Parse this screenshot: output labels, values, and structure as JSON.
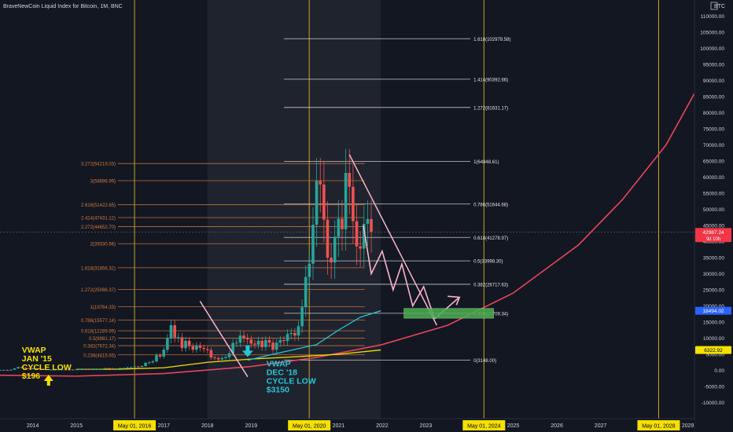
{
  "header": {
    "title": "BraveNewCoin Liquid Index for Bitcoin, 1M, BNC"
  },
  "chart_data": {
    "type": "candlestick",
    "title": "BraveNewCoin Liquid Index for Bitcoin, 1M, BNC",
    "x_axis": {
      "labels": [
        "2014",
        "2015",
        "2016",
        "2017",
        "2018",
        "2019",
        "2020",
        "2021",
        "2022",
        "2023",
        "2024",
        "2025",
        "2026",
        "2027",
        "2028",
        "2029"
      ],
      "range": [
        2013.25,
        2029.15
      ]
    },
    "y_axis": {
      "unit": "BTC",
      "range": [
        -15000,
        115000
      ],
      "ticks": [
        110000,
        105000,
        100000,
        95000,
        90000,
        85000,
        80000,
        75000,
        70000,
        65000,
        60000,
        55000,
        50000,
        45000,
        40000,
        35000,
        30000,
        25000,
        20000,
        15000,
        10000,
        5000,
        0,
        -5000,
        -10000
      ],
      "tick_labels": [
        "110000.00",
        "105000.00",
        "100000.00",
        "95000.00",
        "90000.00",
        "85000.00",
        "80000.00",
        "75000.00",
        "70000.00",
        "65000.00",
        "60000.00",
        "55000.00",
        "50000.00",
        "45000.00",
        "40000.00",
        "35000.00",
        "30000.00",
        "25000.00",
        "20000.00",
        "15000.00",
        "10000.00",
        "5000.00",
        "0.00",
        "-5000.00",
        "-10000.00"
      ]
    },
    "price_badges": [
      {
        "value": 42987.24,
        "label": "42987.24",
        "sublabel": "9d 10h",
        "color": "#f23645"
      },
      {
        "value": 18494.02,
        "label": "18494.02",
        "color": "#2962ff"
      },
      {
        "value": 6322.92,
        "label": "6322.92",
        "color": "#f5e000",
        "text_color": "#000000"
      }
    ],
    "vertical_markers": [
      {
        "x": 2016.33,
        "label": "May 01, 2016"
      },
      {
        "x": 2020.33,
        "label": "May 01, 2020"
      },
      {
        "x": 2024.33,
        "label": "May 01, 2024"
      },
      {
        "x": 2028.33,
        "label": "May 01, 2028"
      }
    ],
    "shaded_range": {
      "x": [
        2018.0,
        2021.97
      ],
      "color": "#2a2e39"
    },
    "fib_left": {
      "color": "#d37a3a",
      "x_range": [
        2013.25,
        2021.6
      ],
      "levels": [
        {
          "label": "3.272(64219.03)",
          "value": 64219.03
        },
        {
          "label": "3(58896.99)",
          "value": 58896.99
        },
        {
          "label": "2.618(51422.65)",
          "value": 51422.65
        },
        {
          "label": "2.414(47431.12)",
          "value": 47431.12
        },
        {
          "label": "2.272(44652.70)",
          "value": 44652.7
        },
        {
          "label": "2(39330.66)",
          "value": 39330.66
        },
        {
          "label": "1.618(31856.32)",
          "value": 31856.32
        },
        {
          "label": "1.272(25086.37)",
          "value": 25086.37
        },
        {
          "label": "1(19764.33)",
          "value": 19764.33
        },
        {
          "label": "0.786(15577.14)",
          "value": 15577.14
        },
        {
          "label": "0.618(12289.99)",
          "value": 12289.99
        },
        {
          "label": "0.5(9981.17)",
          "value": 9981.17
        },
        {
          "label": "0.382(7672.34)",
          "value": 7672.34
        },
        {
          "label": "0.236(4815.65)",
          "value": 4815.65
        }
      ]
    },
    "fib_right": {
      "color": "#e8e8e8",
      "x_range": [
        2019.75,
        2025.1
      ],
      "levels": [
        {
          "label": "1.618(102979.58)",
          "value": 102979.58
        },
        {
          "label": "1.414(90392.66)",
          "value": 90392.66
        },
        {
          "label": "1.272(81631.17)",
          "value": 81631.17
        },
        {
          "label": "1(64848.61)",
          "value": 64848.61
        },
        {
          "label": "0.786(51644.68)",
          "value": 51644.68
        },
        {
          "label": "0.618(41278.97)",
          "value": 41278.97
        },
        {
          "label": "0.5(33998.30)",
          "value": 33998.3
        },
        {
          "label": "0.382(26717.63)",
          "value": 26717.63
        },
        {
          "label": "0.236(17709.34)",
          "value": 17709.34
        },
        {
          "label": "0(3148.00)",
          "value": 3148.0
        }
      ]
    },
    "candles_monthly_close": {
      "start": 2013.25,
      "step": 0.08333,
      "closes": [
        110,
        130,
        100,
        200,
        600,
        1000,
        800,
        600,
        450,
        600,
        580,
        400,
        330,
        230,
        240,
        250,
        260,
        280,
        230,
        240,
        230,
        320,
        360,
        430,
        370,
        400,
        420,
        450,
        530,
        670,
        620,
        580,
        610,
        700,
        740,
        960,
        970,
        1190,
        1080,
        1350,
        2300,
        2500,
        2800,
        4700,
        4300,
        6400,
        9900,
        14000,
        10200,
        10300,
        6900,
        9200,
        7500,
        6400,
        7700,
        7000,
        6600,
        6300,
        4000,
        3800,
        3400,
        3800,
        4100,
        5300,
        8500,
        8600,
        10800,
        10100,
        9600,
        8300,
        8000,
        9200,
        7200,
        9400,
        8600,
        6400,
        8600,
        9400,
        9100,
        11300,
        11600,
        10800,
        13700,
        19600,
        29000,
        33100,
        45200,
        58800,
        57700,
        46800,
        35000,
        33500,
        41500,
        47100,
        43800,
        61300,
        57000,
        46300,
        38500,
        37800,
        45500,
        47000,
        42987
      ]
    },
    "vwap_series": [
      {
        "name": "VWAP JAN '15",
        "color": "#f5e000",
        "x": [
          2015.0,
          2016.0,
          2017.0,
          2018.0,
          2019.0,
          2020.0,
          2021.0,
          2021.97
        ],
        "y": [
          300,
          380,
          800,
          2500,
          3500,
          4200,
          5000,
          6322
        ]
      },
      {
        "name": "VWAP DEC '18",
        "color": "#26c6da",
        "x": [
          2018.92,
          2019.5,
          2020.0,
          2020.5,
          2021.0,
          2021.5,
          2021.97
        ],
        "y": [
          3150,
          5000,
          6500,
          8000,
          12500,
          16500,
          18494
        ]
      }
    ],
    "growth_curve": {
      "color": "#e8455a",
      "x": [
        2013.25,
        2015,
        2017,
        2019,
        2020.5,
        2022,
        2023.5,
        2025,
        2026.5,
        2027.5,
        2028.5,
        2029.15
      ],
      "y": [
        -1500,
        -1800,
        -1000,
        1200,
        4000,
        8000,
        14000,
        24000,
        39000,
        53000,
        70000,
        86000
      ]
    },
    "annotations": [
      {
        "lines": [
          "VWAP",
          "JAN '15",
          "CYCLE LOW",
          "$196"
        ],
        "color": "#f5e000",
        "x": 2013.75,
        "y": 5500
      },
      {
        "lines": [
          "VWAP",
          "DEC '18",
          "CYCLE LOW",
          "$3150"
        ],
        "color": "#26c6da",
        "x": 2019.35,
        "y": 1200
      }
    ],
    "target_zone": {
      "x": [
        2022.5,
        2024.55
      ],
      "y": [
        16200,
        19200
      ],
      "color": "#4caf50"
    }
  }
}
